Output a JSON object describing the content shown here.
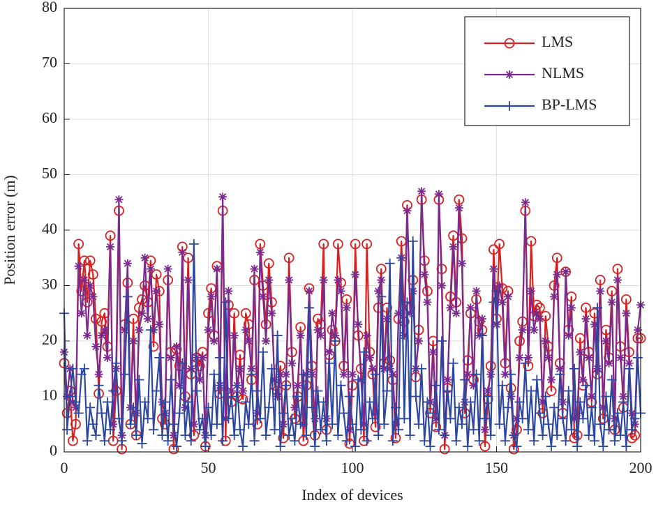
{
  "chart_data": {
    "type": "line",
    "xlabel": "Index of devices",
    "ylabel": "Position error (m)",
    "x": [
      0,
      1,
      2,
      3,
      4,
      5,
      6,
      7,
      8,
      9,
      10,
      11,
      12,
      13,
      14,
      15,
      16,
      17,
      18,
      19,
      20,
      21,
      22,
      23,
      24,
      25,
      26,
      27,
      28,
      29,
      30,
      31,
      32,
      33,
      34,
      35,
      36,
      37,
      38,
      39,
      40,
      41,
      42,
      43,
      44,
      45,
      46,
      47,
      48,
      49,
      50,
      51,
      52,
      53,
      54,
      55,
      56,
      57,
      58,
      59,
      60,
      61,
      62,
      63,
      64,
      65,
      66,
      67,
      68,
      69,
      70,
      71,
      72,
      73,
      74,
      75,
      76,
      77,
      78,
      79,
      80,
      81,
      82,
      83,
      84,
      85,
      86,
      87,
      88,
      89,
      90,
      91,
      92,
      93,
      94,
      95,
      96,
      97,
      98,
      99,
      100,
      101,
      102,
      103,
      104,
      105,
      106,
      107,
      108,
      109,
      110,
      111,
      112,
      113,
      114,
      115,
      116,
      117,
      118,
      119,
      120,
      121,
      122,
      123,
      124,
      125,
      126,
      127,
      128,
      129,
      130,
      131,
      132,
      133,
      134,
      135,
      136,
      137,
      138,
      139,
      140,
      141,
      142,
      143,
      144,
      145,
      146,
      147,
      148,
      149,
      150,
      151,
      152,
      153,
      154,
      155,
      156,
      157,
      158,
      159,
      160,
      161,
      162,
      163,
      164,
      165,
      166,
      167,
      168,
      169,
      170,
      171,
      172,
      173,
      174,
      175,
      176,
      177,
      178,
      179,
      180,
      181,
      182,
      183,
      184,
      185,
      186,
      187,
      188,
      189,
      190,
      191,
      192,
      193,
      194,
      195,
      196,
      197,
      198,
      199,
      200
    ],
    "series": [
      {
        "name": "LMS",
        "color": "#d92020",
        "marker": "o",
        "values": [
          16,
          7,
          11,
          2,
          5,
          37.5,
          29,
          34.5,
          27,
          34.5,
          32,
          24,
          10.5,
          23.5,
          25,
          19,
          39,
          2,
          11,
          43.5,
          0.5,
          23,
          30.5,
          5,
          24,
          3,
          26,
          27.5,
          30,
          27,
          34.5,
          19,
          32,
          29,
          6,
          5,
          31,
          18,
          0.5,
          18.5,
          15.5,
          37,
          10,
          35,
          14,
          3,
          17,
          15.5,
          18,
          1,
          25,
          29.5,
          21,
          33.5,
          10.5,
          43.5,
          2,
          26.5,
          9,
          25,
          10,
          17.5,
          9.5,
          25,
          23,
          13,
          31,
          5,
          37.5,
          30,
          23,
          34,
          27,
          12,
          11,
          15.5,
          2.5,
          12,
          35,
          18,
          6,
          10,
          22.5,
          2,
          12,
          29.5,
          15.5,
          3,
          24,
          23,
          37.5,
          4,
          17.5,
          22,
          20,
          37.5,
          30.5,
          15.5,
          27.5,
          1.5,
          12,
          37.5,
          21,
          15,
          2,
          37.5,
          18,
          14,
          4.5,
          26,
          33,
          16,
          26,
          16.5,
          13,
          2.5,
          24,
          38,
          23.5,
          44.5,
          26,
          31,
          13.5,
          22,
          45.5,
          34.5,
          29,
          7,
          20,
          4.5,
          45.5,
          33,
          0.5,
          11.5,
          28,
          39,
          27,
          45.5,
          38.5,
          7,
          16.5,
          25,
          13,
          27.5,
          23.5,
          22,
          1,
          9.5,
          15.5,
          36.5,
          24,
          37.5,
          29.5,
          16,
          29,
          11.5,
          0.5,
          4,
          20,
          23.5,
          43.5,
          15.5,
          38,
          24.5,
          26.5,
          26,
          7,
          24.5,
          19,
          11,
          30,
          35,
          16,
          7,
          32.5,
          22,
          28,
          2.5,
          3,
          20.5,
          12,
          26,
          18,
          9,
          25,
          14,
          31,
          6,
          22,
          17,
          29,
          4,
          33,
          19,
          8,
          27.5,
          18,
          2.5,
          3,
          20.5,
          20.5
        ]
      },
      {
        "name": "NLMS",
        "color": "#7b2a8e",
        "marker": "*",
        "values": [
          18,
          10,
          15,
          9,
          8,
          33.5,
          25,
          31,
          21,
          30,
          28,
          19,
          14,
          21,
          22,
          17,
          37,
          5,
          15,
          45.5,
          3,
          22,
          34,
          8,
          20,
          7,
          22,
          25,
          35,
          24,
          33,
          22,
          29,
          23,
          9,
          7,
          33,
          17,
          3,
          19,
          12,
          36,
          8,
          31,
          15,
          5,
          17,
          13,
          17,
          3,
          22,
          28,
          20,
          33,
          12,
          46,
          6,
          29,
          11,
          21,
          12,
          15,
          11,
          22,
          20,
          15,
          33,
          7,
          36,
          28,
          20,
          31,
          25,
          13,
          10,
          14,
          5,
          14,
          31,
          16,
          8,
          12,
          21,
          5,
          14,
          29,
          14,
          6,
          22,
          21,
          31,
          6,
          18,
          25,
          21,
          31,
          29,
          14,
          26,
          4,
          14,
          32,
          23,
          13,
          5,
          21,
          17,
          15,
          7,
          29,
          31,
          15,
          24,
          15,
          14,
          5,
          25,
          35,
          21,
          43.5,
          25,
          29,
          15,
          20,
          47,
          32,
          27,
          9,
          18,
          6,
          46.5,
          30,
          3,
          13,
          26,
          37,
          25,
          44,
          34,
          9,
          14,
          26,
          12,
          29,
          21,
          24,
          4,
          11,
          14,
          33,
          23,
          30,
          27,
          14,
          28,
          10,
          3,
          6,
          17,
          22,
          45,
          17,
          29,
          22,
          25,
          24,
          9,
          20,
          17,
          13,
          28,
          32,
          15,
          9,
          32.5,
          21,
          26,
          6,
          7,
          18,
          13,
          24,
          17,
          10,
          23,
          15,
          29,
          8,
          20,
          16,
          27,
          6,
          31,
          17,
          10,
          25,
          16,
          7,
          5,
          22,
          26.5
        ]
      },
      {
        "name": "BP-LMS",
        "color": "#2d47a0",
        "marker": "+",
        "values": [
          25,
          4,
          10,
          15,
          9,
          7,
          14,
          15,
          2,
          8,
          5,
          3,
          12,
          7,
          2,
          9,
          4,
          11,
          16,
          6,
          2,
          14,
          28,
          5,
          8,
          3,
          13,
          1.5,
          9,
          6,
          22,
          4,
          11,
          17,
          3,
          9,
          2,
          13,
          5,
          1,
          7,
          16,
          3,
          9,
          2,
          37.5,
          11,
          4,
          6,
          1,
          8,
          3,
          14,
          5,
          17,
          2,
          27,
          6,
          10,
          3,
          12,
          4,
          1,
          9,
          5,
          14,
          2,
          11,
          6,
          18,
          3,
          8,
          15,
          4,
          21,
          1,
          7,
          12,
          3,
          6,
          2,
          10,
          5,
          14,
          3,
          26,
          8,
          1,
          11,
          4,
          9,
          2,
          16,
          5,
          20,
          3,
          12,
          7,
          2,
          10,
          5,
          1,
          13,
          4,
          18,
          2,
          9,
          6,
          14,
          3,
          28,
          5,
          11,
          34,
          2,
          8,
          4,
          35,
          6,
          27,
          3,
          38,
          10,
          5,
          15,
          2,
          9,
          1,
          7,
          12,
          4,
          20,
          3,
          11,
          6,
          16,
          2,
          8,
          5,
          13,
          1,
          9,
          4,
          14,
          2,
          21,
          6,
          10,
          3,
          27,
          29,
          5,
          12,
          2,
          8,
          14,
          3,
          1,
          9,
          6,
          16,
          4,
          11,
          2,
          13,
          7,
          3,
          10,
          5,
          1,
          8,
          3,
          14,
          6,
          2,
          11,
          4,
          15,
          1,
          9,
          6,
          12,
          3,
          8,
          2,
          26,
          5,
          1,
          10,
          4,
          13,
          2,
          7,
          3,
          9,
          1,
          15,
          4,
          6,
          17,
          7
        ]
      }
    ],
    "xlim": [
      0,
      200
    ],
    "xticks": [
      0,
      50,
      100,
      150,
      200
    ],
    "ylim": [
      0,
      80
    ],
    "yticks": [
      0,
      10,
      20,
      30,
      40,
      50,
      60,
      70,
      80
    ],
    "grid": true,
    "legend": "upper right"
  }
}
